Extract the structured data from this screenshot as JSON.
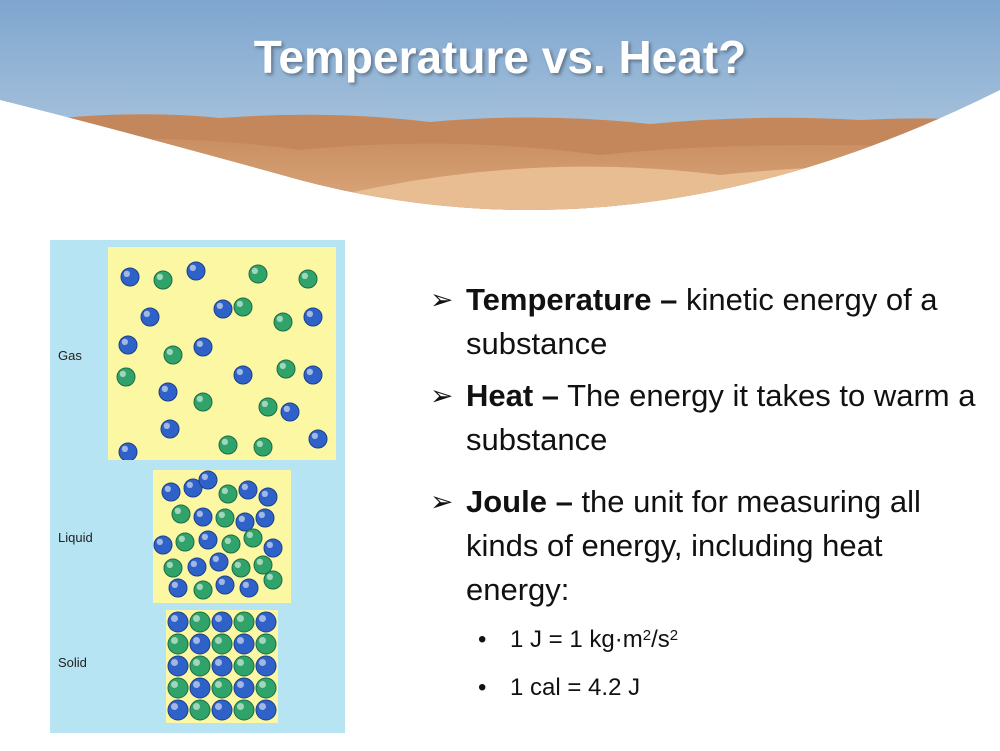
{
  "slide": {
    "title": "Temperature vs. Heat?"
  },
  "figure": {
    "labels": {
      "gas": "Gas",
      "liquid": "Liquid",
      "solid": "Solid"
    }
  },
  "bullets": [
    {
      "term": "Temperature –",
      "text": " kinetic energy of a substance"
    },
    {
      "term": "Heat –",
      "text": " The energy it takes to warm a substance"
    },
    {
      "term": "Joule –",
      "text": " the unit for measuring all kinds of energy, including heat energy:"
    }
  ],
  "sub_bullets": {
    "first": {
      "prefix": "1 J = 1 kg·m",
      "exp1": "2",
      "mid": "/s",
      "exp2": "2"
    },
    "second": "1 cal = 4.2 J"
  },
  "icons": {
    "bullet_marker": "arrow-bullet-icon",
    "sub_marker": "dot-bullet-icon"
  },
  "colors": {
    "sky_top": "#8fb3d6",
    "sand": "#d9a272",
    "panel": "#b6e4f2",
    "box": "#fbf7a2",
    "atom_blue": "#2f62c9",
    "atom_green": "#2fa36a"
  }
}
